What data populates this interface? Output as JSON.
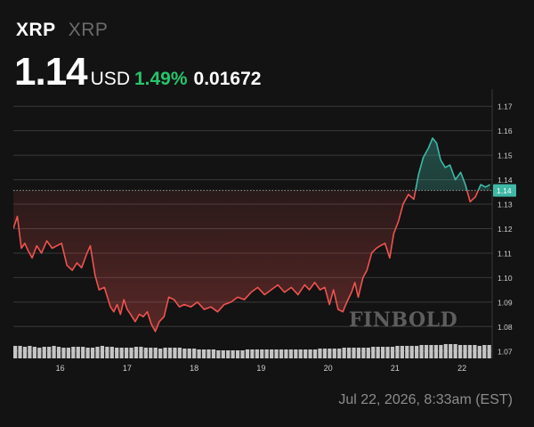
{
  "header": {
    "symbol": "XRP",
    "name": "XRP",
    "price": "1.14",
    "currency": "USD",
    "change_pct": "1.49%",
    "change_abs": "0.01672"
  },
  "footer": {
    "timestamp": "Jul 22, 2026, 8:33am (EST)"
  },
  "watermark": "FINBOLD",
  "colors": {
    "up": "#27c46b",
    "down": "#ef5350",
    "line_up": "#3fb8a6",
    "background": "#131313",
    "grid": "#3a3a3a",
    "volume": "#cfcfcf"
  },
  "chart_data": {
    "type": "line",
    "x_ticks": [
      "16",
      "17",
      "18",
      "19",
      "20",
      "21",
      "22"
    ],
    "y_ticks": [
      "1.17",
      "1.16",
      "1.15",
      "1.14",
      "1.13",
      "1.12",
      "1.11",
      "1.10",
      "1.09",
      "1.08",
      "1.07"
    ],
    "ylim": [
      1.067,
      1.177
    ],
    "xlim": [
      15.3,
      22.45
    ],
    "baseline": 1.1356,
    "last_price_label": "1.14",
    "series": [
      {
        "x": [
          15.3,
          15.36,
          15.42,
          15.47,
          15.52,
          15.58,
          15.65,
          15.72,
          15.8,
          15.88,
          15.95,
          16.02,
          16.1,
          16.18,
          16.25,
          16.32,
          16.4,
          16.45,
          16.52,
          16.58,
          16.66,
          16.75,
          16.8,
          16.85,
          16.9,
          16.95,
          17.0,
          17.05,
          17.12,
          17.18,
          17.24,
          17.3,
          17.36,
          17.42,
          17.48,
          17.55,
          17.62,
          17.7,
          17.78,
          17.85,
          17.95,
          18.05,
          18.15,
          18.25,
          18.35,
          18.45,
          18.55,
          18.65,
          18.75,
          18.85,
          18.95,
          19.05,
          19.15,
          19.25,
          19.35,
          19.45,
          19.55,
          19.65,
          19.72,
          19.8,
          19.88,
          19.95,
          20.02,
          20.08,
          20.15,
          20.22,
          20.28,
          20.35,
          20.4,
          20.45,
          20.52,
          20.58,
          20.65,
          20.72,
          20.78,
          20.85,
          20.92,
          20.98,
          21.05,
          21.12,
          21.2,
          21.28,
          21.35,
          21.42,
          21.5,
          21.56,
          21.62,
          21.68,
          21.75,
          21.82,
          21.9,
          21.98,
          22.05,
          22.12,
          22.2,
          22.28,
          22.35,
          22.42
        ],
        "y": [
          1.12,
          1.125,
          1.112,
          1.114,
          1.111,
          1.108,
          1.113,
          1.11,
          1.115,
          1.112,
          1.113,
          1.114,
          1.105,
          1.103,
          1.106,
          1.104,
          1.11,
          1.113,
          1.101,
          1.095,
          1.096,
          1.088,
          1.086,
          1.089,
          1.085,
          1.091,
          1.087,
          1.085,
          1.082,
          1.085,
          1.084,
          1.086,
          1.081,
          1.078,
          1.082,
          1.084,
          1.092,
          1.091,
          1.088,
          1.089,
          1.088,
          1.09,
          1.087,
          1.088,
          1.086,
          1.089,
          1.09,
          1.092,
          1.091,
          1.094,
          1.096,
          1.093,
          1.095,
          1.097,
          1.094,
          1.096,
          1.093,
          1.097,
          1.095,
          1.098,
          1.095,
          1.096,
          1.089,
          1.095,
          1.087,
          1.086,
          1.09,
          1.094,
          1.098,
          1.092,
          1.1,
          1.103,
          1.11,
          1.112,
          1.113,
          1.114,
          1.108,
          1.118,
          1.123,
          1.13,
          1.134,
          1.132,
          1.142,
          1.149,
          1.153,
          1.157,
          1.155,
          1.148,
          1.145,
          1.146,
          1.14,
          1.143,
          1.138,
          1.131,
          1.133,
          1.138,
          1.137,
          1.138
        ]
      }
    ],
    "volume": [
      14,
      14,
      13,
      14,
      13,
      12,
      13,
      13,
      14,
      13,
      12,
      12,
      13,
      13,
      13,
      12,
      12,
      13,
      14,
      13,
      13,
      12,
      12,
      12,
      12,
      13,
      13,
      12,
      12,
      12,
      11,
      12,
      12,
      12,
      12,
      11,
      11,
      11,
      10,
      10,
      10,
      10,
      9,
      9,
      9,
      9,
      9,
      9,
      10,
      10,
      10,
      10,
      10,
      10,
      10,
      10,
      10,
      10,
      10,
      10,
      10,
      10,
      10,
      11,
      11,
      11,
      11,
      11,
      12,
      12,
      12,
      12,
      12,
      12,
      13,
      13,
      13,
      13,
      13,
      14,
      14,
      14,
      14,
      14,
      15,
      15,
      15,
      15,
      15,
      16,
      16,
      16,
      15,
      15,
      15,
      15,
      14,
      15,
      15
    ]
  }
}
